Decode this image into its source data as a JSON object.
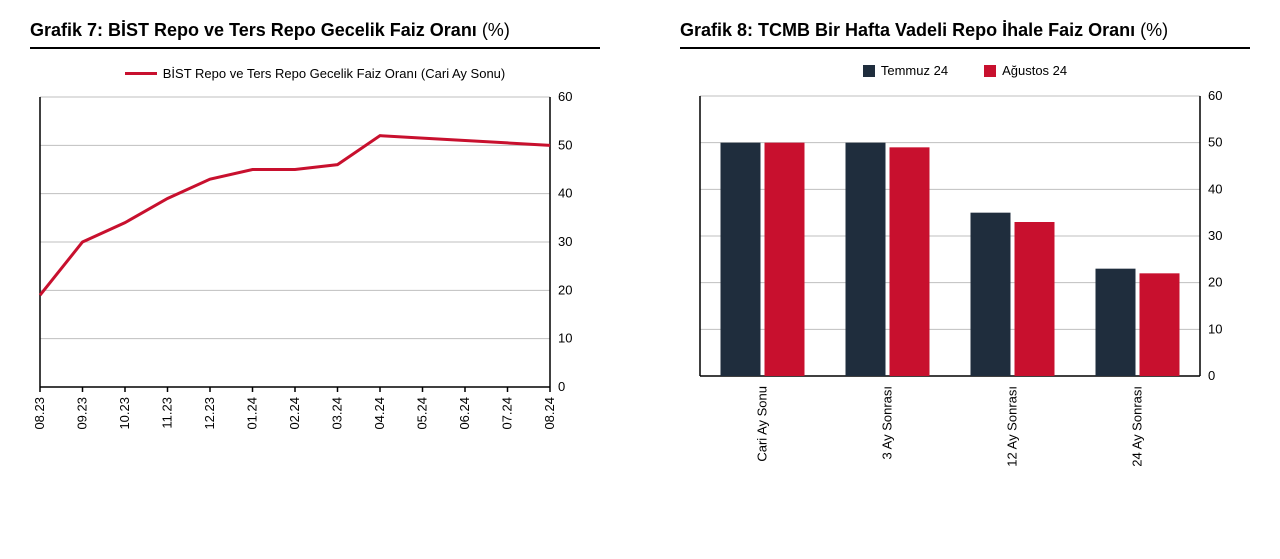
{
  "chart7": {
    "title_prefix": "Grafik 7:  ",
    "title_main": "BİST Repo ve Ters Repo Gecelik Faiz Oranı",
    "title_unit": " (%)",
    "type": "line",
    "legend_label": "BİST Repo ve Ters Repo Gecelik Faiz Oranı (Cari Ay Sonu)",
    "line_color": "#c8102e",
    "line_width": 3,
    "x_labels": [
      "08.23",
      "09.23",
      "10.23",
      "11.23",
      "12.23",
      "01.24",
      "02.24",
      "03.24",
      "04.24",
      "05.24",
      "06.24",
      "07.24",
      "08.24"
    ],
    "y_values": [
      19,
      30,
      34,
      39,
      43,
      45,
      45,
      46,
      52,
      51.5,
      51,
      50.5,
      50
    ],
    "ylim": [
      0,
      60
    ],
    "ytick_step": 10,
    "grid_color": "#bfbfbf",
    "background_color": "#ffffff",
    "label_fontsize": 13
  },
  "chart8": {
    "title_prefix": "Grafik 8: ",
    "title_main": "TCMB Bir Hafta Vadeli Repo İhale Faiz Oranı",
    "title_unit": " (%)",
    "type": "bar",
    "series": [
      {
        "name": "Temmuz 24",
        "color": "#1f2d3d",
        "values": [
          50,
          50,
          35,
          23
        ]
      },
      {
        "name": "Ağustos 24",
        "color": "#c8102e",
        "values": [
          50,
          49,
          33,
          22
        ]
      }
    ],
    "categories": [
      "Cari Ay Sonu",
      "3 Ay Sonrası",
      "12 Ay Sonrası",
      "24 Ay Sonrası"
    ],
    "ylim": [
      0,
      60
    ],
    "ytick_step": 10,
    "grid_color": "#bfbfbf",
    "background_color": "#ffffff",
    "bar_width_ratio": 0.32,
    "label_fontsize": 13
  }
}
